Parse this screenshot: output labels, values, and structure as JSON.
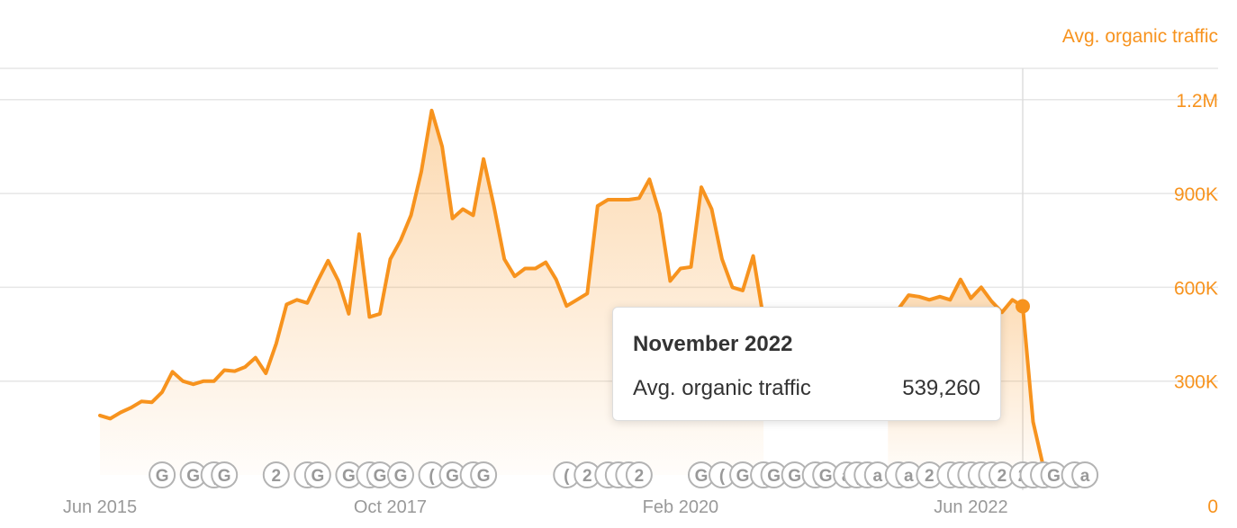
{
  "chart_data": {
    "type": "area",
    "series": [
      {
        "name": "Avg. organic traffic",
        "color": "#f7931e",
        "points": [
          [
            "2015-06",
            190000
          ],
          [
            "2015-07",
            180000
          ],
          [
            "2015-08",
            200000
          ],
          [
            "2015-09",
            215000
          ],
          [
            "2015-10",
            235000
          ],
          [
            "2015-11",
            232000
          ],
          [
            "2015-12",
            265000
          ],
          [
            "2016-01",
            330000
          ],
          [
            "2016-02",
            300000
          ],
          [
            "2016-03",
            290000
          ],
          [
            "2016-04",
            300000
          ],
          [
            "2016-05",
            300000
          ],
          [
            "2016-06",
            335000
          ],
          [
            "2016-07",
            332000
          ],
          [
            "2016-08",
            345000
          ],
          [
            "2016-09",
            375000
          ],
          [
            "2016-10",
            325000
          ],
          [
            "2016-11",
            420000
          ],
          [
            "2016-12",
            545000
          ],
          [
            "2017-01",
            560000
          ],
          [
            "2017-02",
            550000
          ],
          [
            "2017-03",
            620000
          ],
          [
            "2017-04",
            685000
          ],
          [
            "2017-05",
            620000
          ],
          [
            "2017-06",
            515000
          ],
          [
            "2017-07",
            770000
          ],
          [
            "2017-08",
            505000
          ],
          [
            "2017-09",
            515000
          ],
          [
            "2017-10",
            690000
          ],
          [
            "2017-11",
            750000
          ],
          [
            "2017-12",
            830000
          ],
          [
            "2018-01",
            970000
          ],
          [
            "2018-02",
            1165000
          ],
          [
            "2018-03",
            1050000
          ],
          [
            "2018-04",
            820000
          ],
          [
            "2018-05",
            850000
          ],
          [
            "2018-06",
            830000
          ],
          [
            "2018-07",
            1010000
          ],
          [
            "2018-08",
            860000
          ],
          [
            "2018-09",
            690000
          ],
          [
            "2018-10",
            635000
          ],
          [
            "2018-11",
            660000
          ],
          [
            "2018-12",
            660000
          ],
          [
            "2019-01",
            680000
          ],
          [
            "2019-02",
            625000
          ],
          [
            "2019-03",
            540000
          ],
          [
            "2019-04",
            560000
          ],
          [
            "2019-05",
            580000
          ],
          [
            "2019-06",
            860000
          ],
          [
            "2019-07",
            880000
          ],
          [
            "2019-08",
            880000
          ],
          [
            "2019-09",
            880000
          ],
          [
            "2019-10",
            885000
          ],
          [
            "2019-11",
            945000
          ],
          [
            "2019-12",
            835000
          ],
          [
            "2020-01",
            620000
          ],
          [
            "2020-02",
            660000
          ],
          [
            "2020-03",
            665000
          ],
          [
            "2020-04",
            920000
          ],
          [
            "2020-05",
            850000
          ],
          [
            "2020-06",
            690000
          ],
          [
            "2020-07",
            600000
          ],
          [
            "2020-08",
            590000
          ],
          [
            "2020-09",
            700000
          ],
          [
            "2020-10",
            500000
          ],
          [
            "2021-10",
            480000
          ],
          [
            "2021-11",
            530000
          ],
          [
            "2021-12",
            575000
          ],
          [
            "2022-01",
            570000
          ],
          [
            "2022-02",
            560000
          ],
          [
            "2022-03",
            570000
          ],
          [
            "2022-04",
            560000
          ],
          [
            "2022-05",
            625000
          ],
          [
            "2022-06",
            565000
          ],
          [
            "2022-07",
            600000
          ],
          [
            "2022-08",
            555000
          ],
          [
            "2022-09",
            520000
          ],
          [
            "2022-10",
            560000
          ],
          [
            "2022-11",
            539260
          ],
          [
            "2022-12",
            170000
          ],
          [
            "2023-01",
            25000
          ]
        ]
      }
    ],
    "y_axis": {
      "title": "Avg. organic traffic",
      "min": 0,
      "max": 1200000,
      "ticks": [
        {
          "value": 1200000,
          "label": "1.2M"
        },
        {
          "value": 900000,
          "label": "900K"
        },
        {
          "value": 600000,
          "label": "600K"
        },
        {
          "value": 300000,
          "label": "300K"
        },
        {
          "value": 0,
          "label": "0"
        }
      ],
      "position": "right",
      "color": "#f7931e"
    },
    "x_axis": {
      "ticks": [
        {
          "date": "2015-06",
          "label": "Jun 2015"
        },
        {
          "date": "2017-10",
          "label": "Oct 2017"
        },
        {
          "date": "2020-02",
          "label": "Feb 2020"
        },
        {
          "date": "2022-06",
          "label": "Jun 2022"
        }
      ]
    },
    "grid": true,
    "hover_date": "2022-11",
    "events": [
      {
        "date": "2015-12",
        "label": "G"
      },
      {
        "date": "2016-03",
        "label": "G"
      },
      {
        "date": "2016-05",
        "label": "("
      },
      {
        "date": "2016-06",
        "label": "G"
      },
      {
        "date": "2016-11",
        "label": "2"
      },
      {
        "date": "2017-02",
        "label": "("
      },
      {
        "date": "2017-03",
        "label": "G"
      },
      {
        "date": "2017-06",
        "label": "G"
      },
      {
        "date": "2017-08",
        "label": "("
      },
      {
        "date": "2017-09",
        "label": "G"
      },
      {
        "date": "2017-11",
        "label": "G"
      },
      {
        "date": "2018-02",
        "label": "("
      },
      {
        "date": "2018-04",
        "label": "G"
      },
      {
        "date": "2018-06",
        "label": "("
      },
      {
        "date": "2018-07",
        "label": "G"
      },
      {
        "date": "2019-03",
        "label": "("
      },
      {
        "date": "2019-05",
        "label": "2"
      },
      {
        "date": "2019-07",
        "label": "("
      },
      {
        "date": "2019-08",
        "label": "("
      },
      {
        "date": "2019-09",
        "label": "("
      },
      {
        "date": "2019-10",
        "label": "2"
      },
      {
        "date": "2020-04",
        "label": "G"
      },
      {
        "date": "2020-06",
        "label": "("
      },
      {
        "date": "2020-08",
        "label": "G"
      },
      {
        "date": "2020-10",
        "label": "("
      },
      {
        "date": "2020-11",
        "label": "G"
      },
      {
        "date": "2021-01",
        "label": "G"
      },
      {
        "date": "2021-03",
        "label": "("
      },
      {
        "date": "2021-04",
        "label": "G"
      },
      {
        "date": "2021-06",
        "label": "a"
      },
      {
        "date": "2021-07",
        "label": "("
      },
      {
        "date": "2021-08",
        "label": "("
      },
      {
        "date": "2021-09",
        "label": "a"
      },
      {
        "date": "2021-11",
        "label": "("
      },
      {
        "date": "2021-12",
        "label": "a"
      },
      {
        "date": "2022-02",
        "label": "2"
      },
      {
        "date": "2022-04",
        "label": "("
      },
      {
        "date": "2022-05",
        "label": "("
      },
      {
        "date": "2022-06",
        "label": "("
      },
      {
        "date": "2022-07",
        "label": "("
      },
      {
        "date": "2022-08",
        "label": "("
      },
      {
        "date": "2022-09",
        "label": "2"
      },
      {
        "date": "2022-11",
        "label": "2"
      },
      {
        "date": "2022-12",
        "label": "("
      },
      {
        "date": "2023-01",
        "label": "("
      },
      {
        "date": "2023-02",
        "label": "G"
      },
      {
        "date": "2023-04",
        "label": "("
      },
      {
        "date": "2023-05",
        "label": "a"
      }
    ]
  },
  "tooltip": {
    "title": "November 2022",
    "label": "Avg. organic traffic",
    "value": "539,260"
  }
}
